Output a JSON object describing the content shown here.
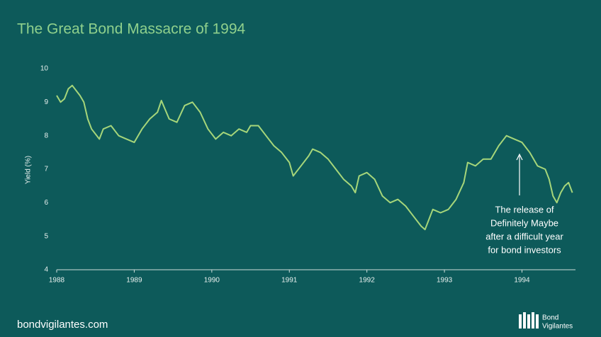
{
  "chart_data": {
    "type": "line",
    "title": "The Great Bond Massacre of 1994",
    "y_label": "Yield (%)",
    "annotation": [
      "The release of",
      "Definitely Maybe",
      "after a difficult year",
      "for bond investors"
    ],
    "footer": "bondvigilantes.com",
    "logo": [
      "Bond",
      "Vigilantes"
    ],
    "xlim": [
      1988,
      1994.69
    ],
    "xticks": [
      1988,
      1989,
      1990,
      1991,
      1992,
      1993,
      1994
    ],
    "ylim": [
      4,
      10
    ],
    "yticks": [
      4,
      5,
      6,
      7,
      8,
      9,
      10
    ],
    "color": "#a6d67a",
    "x": [
      1988.0,
      1988.05,
      1988.1,
      1988.15,
      1988.2,
      1988.3,
      1988.35,
      1988.4,
      1988.45,
      1988.55,
      1988.6,
      1988.7,
      1988.8,
      1988.9,
      1989.0,
      1989.1,
      1989.2,
      1989.3,
      1989.35,
      1989.45,
      1989.55,
      1989.65,
      1989.75,
      1989.85,
      1989.95,
      1990.05,
      1990.15,
      1990.25,
      1990.35,
      1990.45,
      1990.5,
      1990.6,
      1990.7,
      1990.8,
      1990.9,
      1991.0,
      1991.05,
      1991.15,
      1991.25,
      1991.3,
      1991.4,
      1991.5,
      1991.6,
      1991.7,
      1991.8,
      1991.85,
      1991.9,
      1992.0,
      1992.1,
      1992.2,
      1992.3,
      1992.4,
      1992.5,
      1992.6,
      1992.7,
      1992.75,
      1992.8,
      1992.85,
      1992.95,
      1993.05,
      1993.15,
      1993.25,
      1993.3,
      1993.4,
      1993.5,
      1993.6,
      1993.7,
      1993.8,
      1993.9,
      1994.0,
      1994.1,
      1994.2,
      1994.3,
      1994.35,
      1994.4,
      1994.45,
      1994.5,
      1994.55,
      1994.6,
      1994.65
    ],
    "values": [
      9.2,
      9.0,
      9.1,
      9.4,
      9.5,
      9.2,
      9.0,
      8.5,
      8.2,
      7.9,
      8.2,
      8.3,
      8.0,
      7.9,
      7.8,
      8.2,
      8.5,
      8.7,
      9.05,
      8.5,
      8.4,
      8.9,
      9.0,
      8.7,
      8.2,
      7.9,
      8.1,
      8.0,
      8.2,
      8.1,
      8.3,
      8.3,
      8.0,
      7.7,
      7.5,
      7.2,
      6.8,
      7.1,
      7.4,
      7.6,
      7.5,
      7.3,
      7.0,
      6.7,
      6.5,
      6.3,
      6.8,
      6.9,
      6.7,
      6.2,
      6.0,
      6.1,
      5.9,
      5.6,
      5.3,
      5.2,
      5.5,
      5.8,
      5.7,
      5.8,
      6.1,
      6.6,
      7.2,
      7.1,
      7.3,
      7.3,
      7.7,
      8.0,
      7.9,
      7.8,
      7.5,
      7.1,
      7.0,
      6.7,
      6.2,
      6.0,
      6.3,
      6.5,
      6.6,
      6.3
    ]
  }
}
